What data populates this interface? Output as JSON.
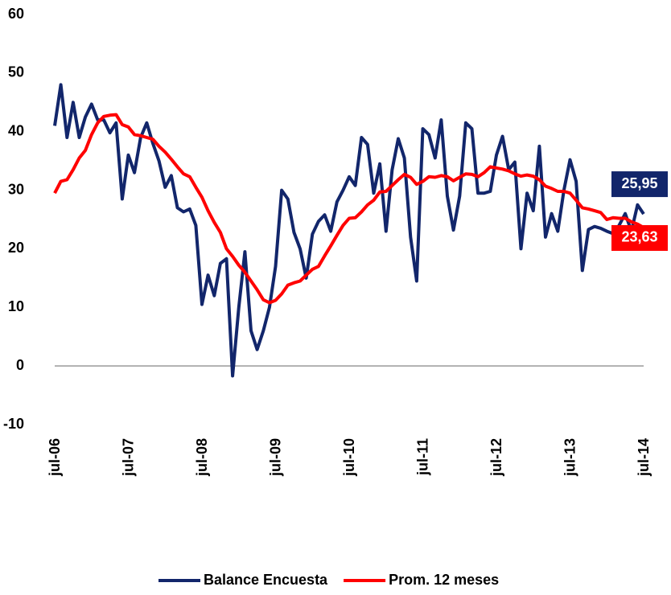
{
  "chart_data": {
    "type": "line",
    "categories": [
      "jul-06",
      null,
      null,
      null,
      null,
      null,
      null,
      null,
      null,
      null,
      null,
      null,
      "jul-07",
      null,
      null,
      null,
      null,
      null,
      null,
      null,
      null,
      null,
      null,
      null,
      "jul-08",
      null,
      null,
      null,
      null,
      null,
      null,
      null,
      null,
      null,
      null,
      null,
      "jul-09",
      null,
      null,
      null,
      null,
      null,
      null,
      null,
      null,
      null,
      null,
      null,
      "jul-10",
      null,
      null,
      null,
      null,
      null,
      null,
      null,
      null,
      null,
      null,
      null,
      "jul-11",
      null,
      null,
      null,
      null,
      null,
      null,
      null,
      null,
      null,
      null,
      null,
      "jul-12",
      null,
      null,
      null,
      null,
      null,
      null,
      null,
      null,
      null,
      null,
      null,
      "jul-13",
      null,
      null,
      null,
      null,
      null,
      null,
      null,
      null,
      null,
      null,
      null,
      "jul-14"
    ],
    "series": [
      {
        "name": "Balance Encuesta",
        "color": "#12266b",
        "values": [
          41,
          48,
          39,
          45,
          39,
          42.5,
          44.7,
          42,
          42,
          39.8,
          41.5,
          28.5,
          36,
          33,
          39,
          41.5,
          38,
          35,
          30.5,
          32.5,
          27,
          26.3,
          26.8,
          24,
          10.5,
          15.5,
          12,
          17.5,
          18.3,
          -1.7,
          10,
          19.5,
          6,
          2.8,
          6,
          10,
          17,
          30,
          28.5,
          22.8,
          20,
          15,
          22.5,
          24.7,
          25.8,
          23,
          28,
          30,
          32.3,
          30.8,
          39,
          37.8,
          29.5,
          34.5,
          23,
          33.5,
          38.8,
          35.5,
          22,
          14.5,
          40.5,
          39.5,
          35.5,
          42,
          29,
          23.2,
          29,
          41.5,
          40.5,
          29.5,
          29.5,
          29.8,
          36,
          39.2,
          33.5,
          34.8,
          20,
          29.5,
          26.5,
          37.5,
          22,
          26,
          23,
          30,
          35.2,
          31.5,
          16.3,
          23.3,
          23.8,
          23.5,
          23,
          22.6,
          24,
          26,
          23,
          27.5,
          25.95
        ],
        "value_labels": [
          null,
          null,
          null,
          null,
          null,
          null,
          null,
          null,
          null,
          null,
          null,
          null,
          null,
          null,
          null,
          null,
          null,
          null,
          null,
          null,
          null,
          null,
          null,
          null,
          null,
          null,
          null,
          null,
          null,
          null,
          null,
          null,
          null,
          null,
          null,
          null,
          null,
          null,
          null,
          null,
          null,
          null,
          null,
          null,
          null,
          null,
          null,
          null,
          null,
          null,
          null,
          null,
          null,
          null,
          null,
          null,
          null,
          null,
          null,
          null,
          null,
          null,
          null,
          null,
          null,
          null,
          null,
          null,
          null,
          null,
          null,
          null,
          null,
          null,
          null,
          null,
          null,
          null,
          null,
          null,
          null,
          null,
          null,
          null,
          null,
          null,
          null,
          null,
          null,
          null,
          null,
          null,
          null,
          null,
          null,
          null,
          "25,95"
        ]
      },
      {
        "name": "Prom. 12 meses",
        "color": "#ff0000",
        "values": [
          29.5,
          31.5,
          31.8,
          33.5,
          35.5,
          36.8,
          39.5,
          41.5,
          42.6,
          42.8,
          42.9,
          41.2,
          40.8,
          39.5,
          39.3,
          39,
          38.7,
          37.5,
          36.5,
          35.3,
          34,
          32.8,
          32.3,
          30.5,
          28.8,
          26.5,
          24.5,
          22.8,
          20,
          18.7,
          17.2,
          16,
          14.5,
          13,
          11.3,
          10.8,
          11.2,
          12.3,
          13.8,
          14.2,
          14.5,
          15.5,
          16.5,
          17,
          18.8,
          20.5,
          22.3,
          24,
          25.2,
          25.3,
          26.3,
          27.5,
          28.3,
          29.7,
          29.8,
          30.8,
          31.8,
          32.7,
          32.2,
          31,
          31.5,
          32.3,
          32.2,
          32.5,
          32.3,
          31.6,
          32.2,
          32.8,
          32.7,
          32.3,
          33,
          34,
          33.8,
          33.6,
          33.3,
          32.8,
          32.4,
          32.6,
          32.4,
          31.8,
          30.7,
          30.3,
          29.8,
          29.8,
          29.5,
          28.3,
          27,
          26.8,
          26.5,
          26.2,
          25,
          25.3,
          25.2,
          25.2,
          24.6,
          24.2,
          23.63
        ],
        "value_labels": [
          null,
          null,
          null,
          null,
          null,
          null,
          null,
          null,
          null,
          null,
          null,
          null,
          null,
          null,
          null,
          null,
          null,
          null,
          null,
          null,
          null,
          null,
          null,
          null,
          null,
          null,
          null,
          null,
          null,
          null,
          null,
          null,
          null,
          null,
          null,
          null,
          null,
          null,
          null,
          null,
          null,
          null,
          null,
          null,
          null,
          null,
          null,
          null,
          null,
          null,
          null,
          null,
          null,
          null,
          null,
          null,
          null,
          null,
          null,
          null,
          null,
          null,
          null,
          null,
          null,
          null,
          null,
          null,
          null,
          null,
          null,
          null,
          null,
          null,
          null,
          null,
          null,
          null,
          null,
          null,
          null,
          null,
          null,
          null,
          null,
          null,
          null,
          null,
          null,
          null,
          null,
          null,
          null,
          null,
          null,
          null,
          "23,63"
        ]
      }
    ],
    "ylim": [
      -10,
      60
    ],
    "yticks": [
      -10,
      0,
      10,
      20,
      30,
      40,
      50,
      60
    ],
    "grid": false,
    "legend": "bottom"
  }
}
